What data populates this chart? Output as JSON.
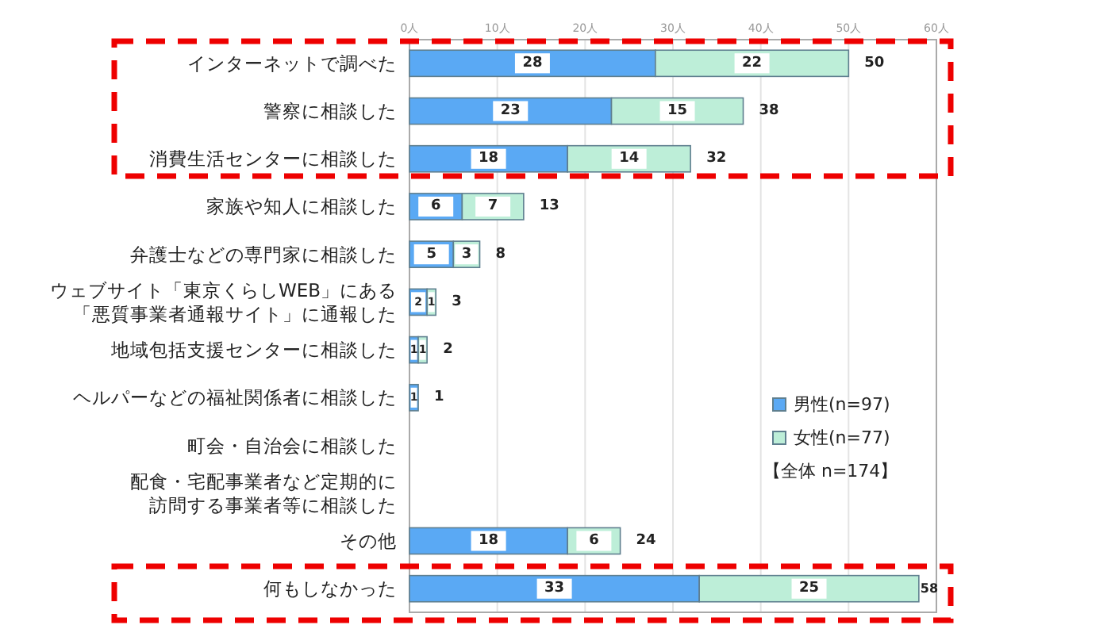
{
  "chart_data": {
    "type": "bar",
    "orientation": "horizontal",
    "stacked": true,
    "data_labels": true,
    "legend": "right",
    "grid": "x",
    "categories": [
      "インターネットで調べた",
      "警察に相談した",
      "消費生活センターに相談した",
      "家族や知人に相談した",
      "弁護士などの専門家に相談した",
      "ウェブサイト「東京くらしWEB」にある「悪質事業者通報サイト」に通報した",
      "地域包括支援センターに相談した",
      "ヘルパーなどの福祉関係者に相談した",
      "町会・自治会に相談した",
      "配食・宅配事業者など定期的に訪問する事業者等に相談した",
      "その他",
      "何もしなかった"
    ],
    "series": [
      {
        "name": "男性(n=97)",
        "color": "#5aa9f4",
        "values": [
          28,
          23,
          18,
          6,
          5,
          2,
          1,
          1,
          null,
          null,
          18,
          33
        ]
      },
      {
        "name": "女性(n=77)",
        "color": "#bdeed8",
        "values": [
          22,
          15,
          14,
          7,
          3,
          1,
          1,
          null,
          null,
          null,
          6,
          25
        ]
      }
    ],
    "totals": [
      "50",
      "38",
      "32",
      "13",
      "8",
      "3",
      "2",
      "1",
      null,
      null,
      "24",
      "58"
    ],
    "xlim": [
      0,
      60
    ],
    "xticks": [
      {
        "value": 0,
        "label": "0人"
      },
      {
        "value": 10,
        "label": "10人"
      },
      {
        "value": 20,
        "label": "20人"
      },
      {
        "value": 30,
        "label": "30人"
      },
      {
        "value": 40,
        "label": "40人"
      },
      {
        "value": 50,
        "label": "50人"
      },
      {
        "value": 60,
        "label": "60人"
      }
    ],
    "annotations": [
      "【全体 n=174】"
    ]
  }
}
